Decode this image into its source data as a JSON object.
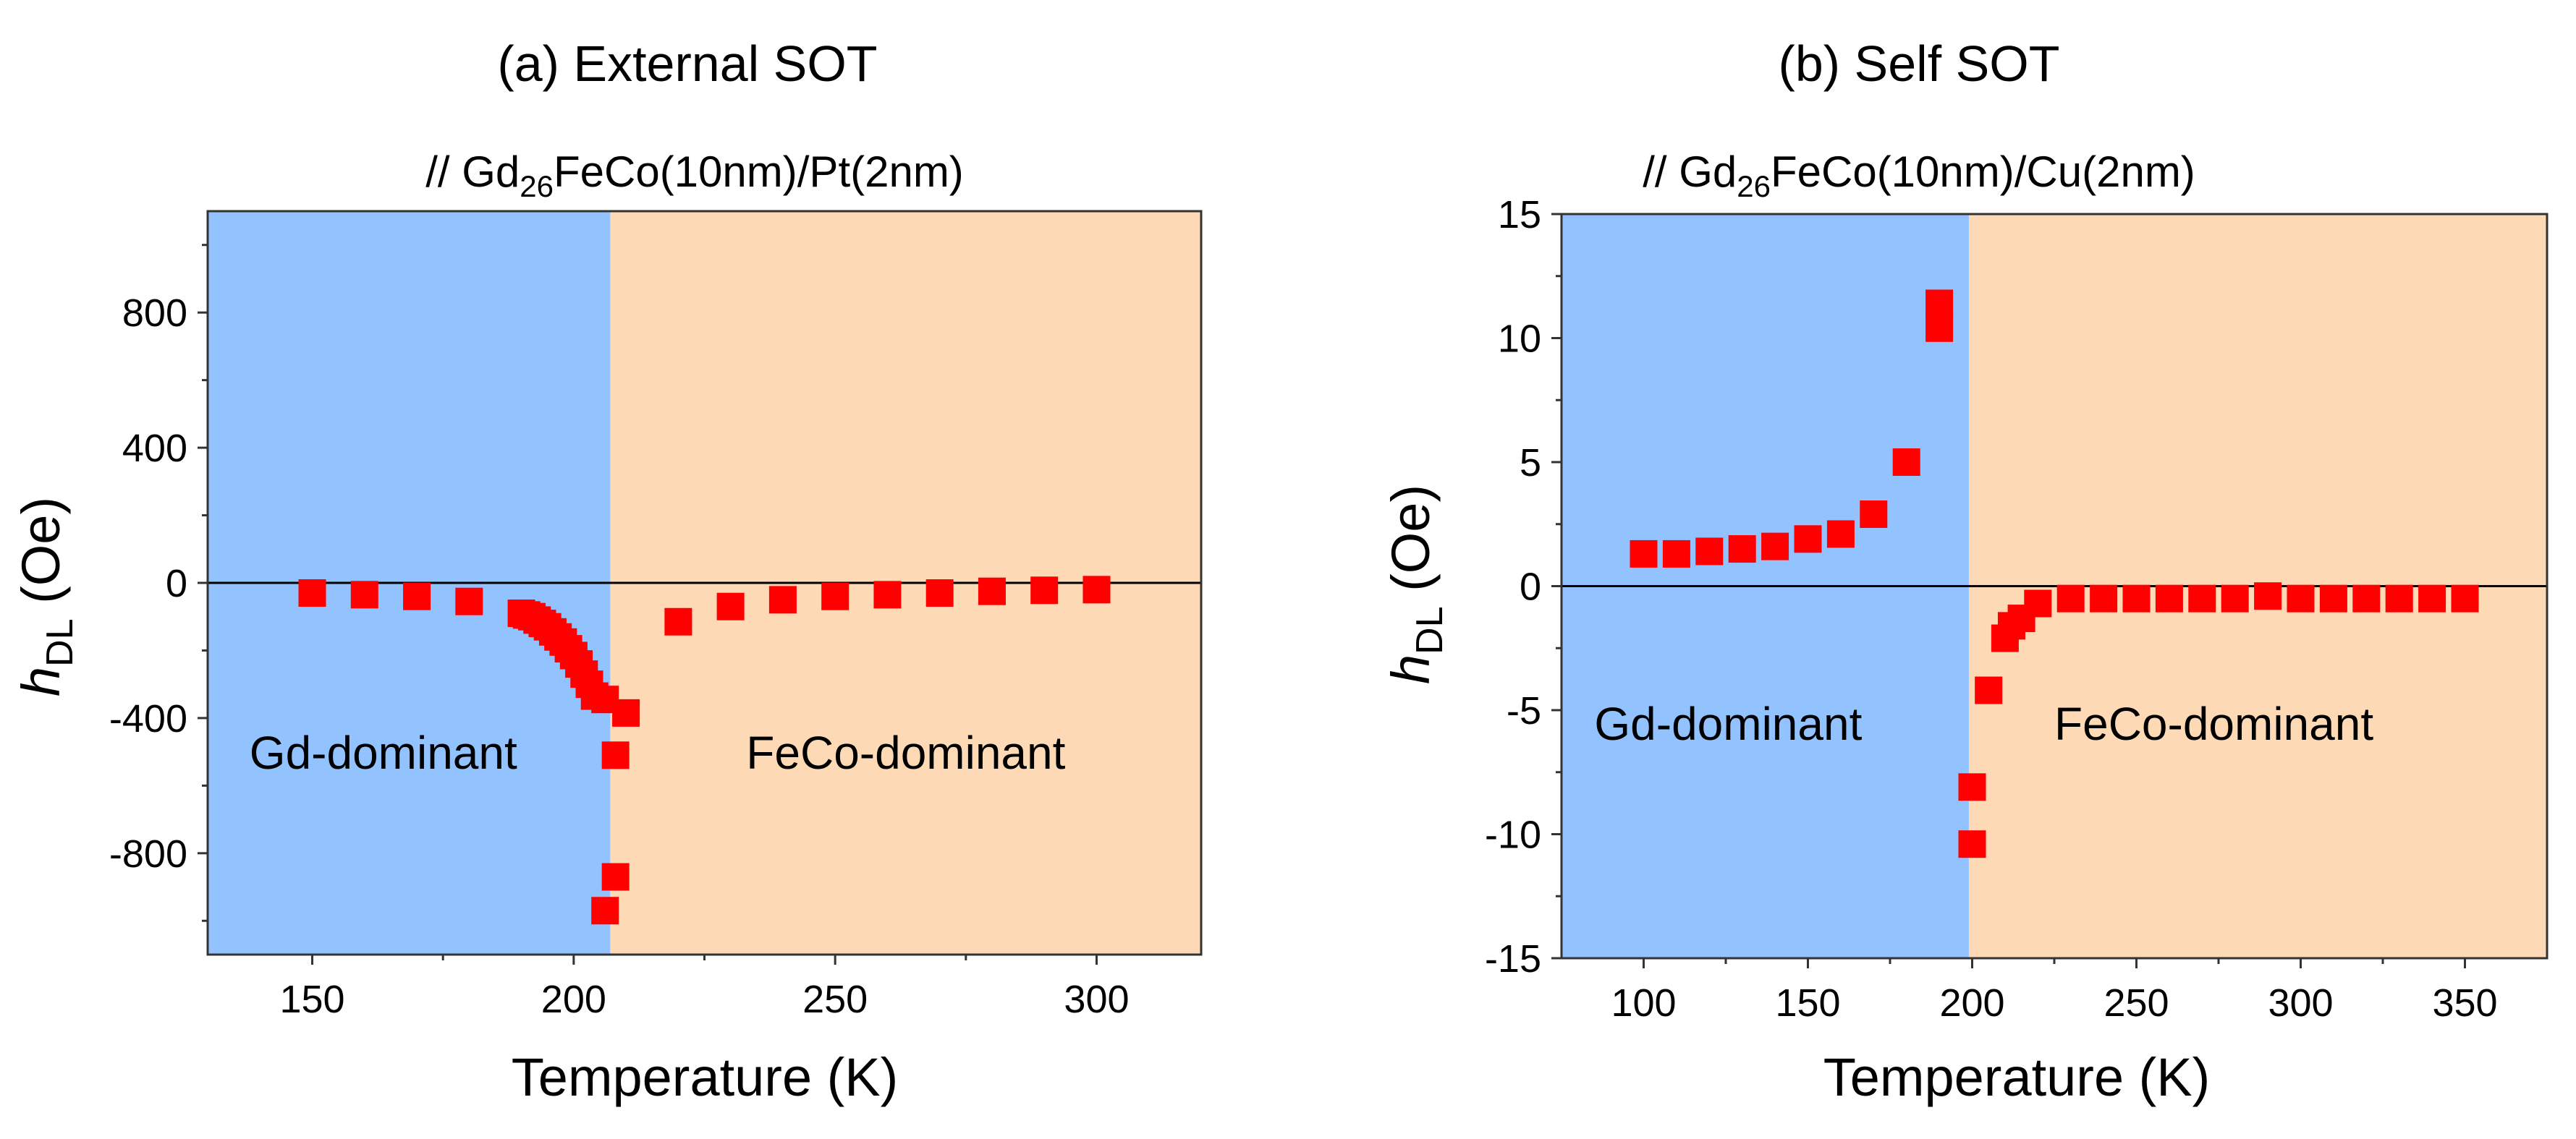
{
  "chart_data": [
    {
      "type": "scatter",
      "title": "(a) External SOT",
      "subtitle": {
        "prefix": "// Gd",
        "sub": "26",
        "suffix": "FeCo(10nm)/Pt(2nm)"
      },
      "xlabel": "Temperature (K)",
      "ylabel": {
        "main": "h",
        "sub": "DL",
        "unit": " (Oe)"
      },
      "xlim": [
        130,
        320
      ],
      "ylim": [
        -1100,
        1100
      ],
      "xticks": [
        150,
        200,
        250,
        300
      ],
      "yticks": [
        -800,
        -400,
        0,
        400,
        800
      ],
      "xminor": [
        175,
        225,
        275
      ],
      "yminor": [
        -1000,
        -600,
        -200,
        200,
        600,
        1000
      ],
      "zero_line": true,
      "regions": [
        {
          "name": "Gd-dominant",
          "from": 130,
          "to": 207,
          "color": "#92c3ff"
        },
        {
          "name": "FeCo-dominant",
          "from": 207,
          "to": 320,
          "color": "#fdd9b5"
        }
      ],
      "region_labels": [
        {
          "text": "Gd-dominant",
          "x": 138,
          "y": -550
        },
        {
          "text": "FeCo-dominant",
          "x": 233,
          "y": -550
        }
      ],
      "series": [
        {
          "color": "#ff0000",
          "x": [
            150,
            160,
            170,
            180,
            190,
            191,
            192,
            193,
            194,
            195,
            196,
            197,
            198,
            199,
            200,
            201,
            202,
            203,
            204,
            206,
            206,
            208,
            208,
            210,
            220,
            230,
            240,
            250,
            260,
            270,
            280,
            290,
            300
          ],
          "y": [
            -30,
            -35,
            -40,
            -55,
            -90,
            -95,
            -100,
            -110,
            -120,
            -130,
            -145,
            -160,
            -175,
            -195,
            -215,
            -240,
            -270,
            -300,
            -335,
            -345,
            -970,
            -870,
            -510,
            -385,
            -115,
            -70,
            -50,
            -40,
            -35,
            -30,
            -25,
            -22,
            -20
          ]
        }
      ]
    },
    {
      "type": "scatter",
      "title": "(b) Self SOT",
      "subtitle": {
        "prefix": "// Gd",
        "sub": "26",
        "suffix": "FeCo(10nm)/Cu(2nm)"
      },
      "xlabel": "Temperature (K)",
      "ylabel": {
        "main": "h",
        "sub": "DL",
        "unit": " (Oe)"
      },
      "xlim": [
        75,
        375
      ],
      "ylim": [
        -15,
        15
      ],
      "xticks": [
        100,
        150,
        200,
        250,
        300,
        350
      ],
      "yticks": [
        -15,
        -10,
        -5,
        0,
        5,
        10,
        15
      ],
      "xminor": [
        125,
        175,
        225,
        275,
        325
      ],
      "yminor": [
        -12.5,
        -7.5,
        -2.5,
        2.5,
        7.5,
        12.5
      ],
      "zero_line": true,
      "regions": [
        {
          "name": "Gd-dominant",
          "from": 75,
          "to": 199,
          "color": "#92c3ff"
        },
        {
          "name": "FeCo-dominant",
          "from": 199,
          "to": 375,
          "color": "#fdd9b5"
        }
      ],
      "region_labels": [
        {
          "text": "Gd-dominant",
          "x": 85,
          "y": -6.2
        },
        {
          "text": "FeCo-dominant",
          "x": 225,
          "y": -6.2
        }
      ],
      "series": [
        {
          "color": "#ff0000",
          "x": [
            100,
            110,
            120,
            130,
            140,
            150,
            160,
            170,
            180,
            190,
            190,
            200,
            200,
            205,
            210,
            212,
            215,
            220,
            230,
            240,
            250,
            260,
            270,
            280,
            290,
            300,
            310,
            320,
            330,
            340,
            350
          ],
          "y": [
            1.3,
            1.3,
            1.4,
            1.5,
            1.6,
            1.9,
            2.1,
            2.9,
            5.0,
            11.4,
            10.4,
            -8.1,
            -10.4,
            -4.2,
            -2.1,
            -1.6,
            -1.3,
            -0.7,
            -0.5,
            -0.5,
            -0.5,
            -0.5,
            -0.5,
            -0.5,
            -0.4,
            -0.5,
            -0.5,
            -0.5,
            -0.5,
            -0.5,
            -0.5
          ]
        }
      ]
    }
  ]
}
